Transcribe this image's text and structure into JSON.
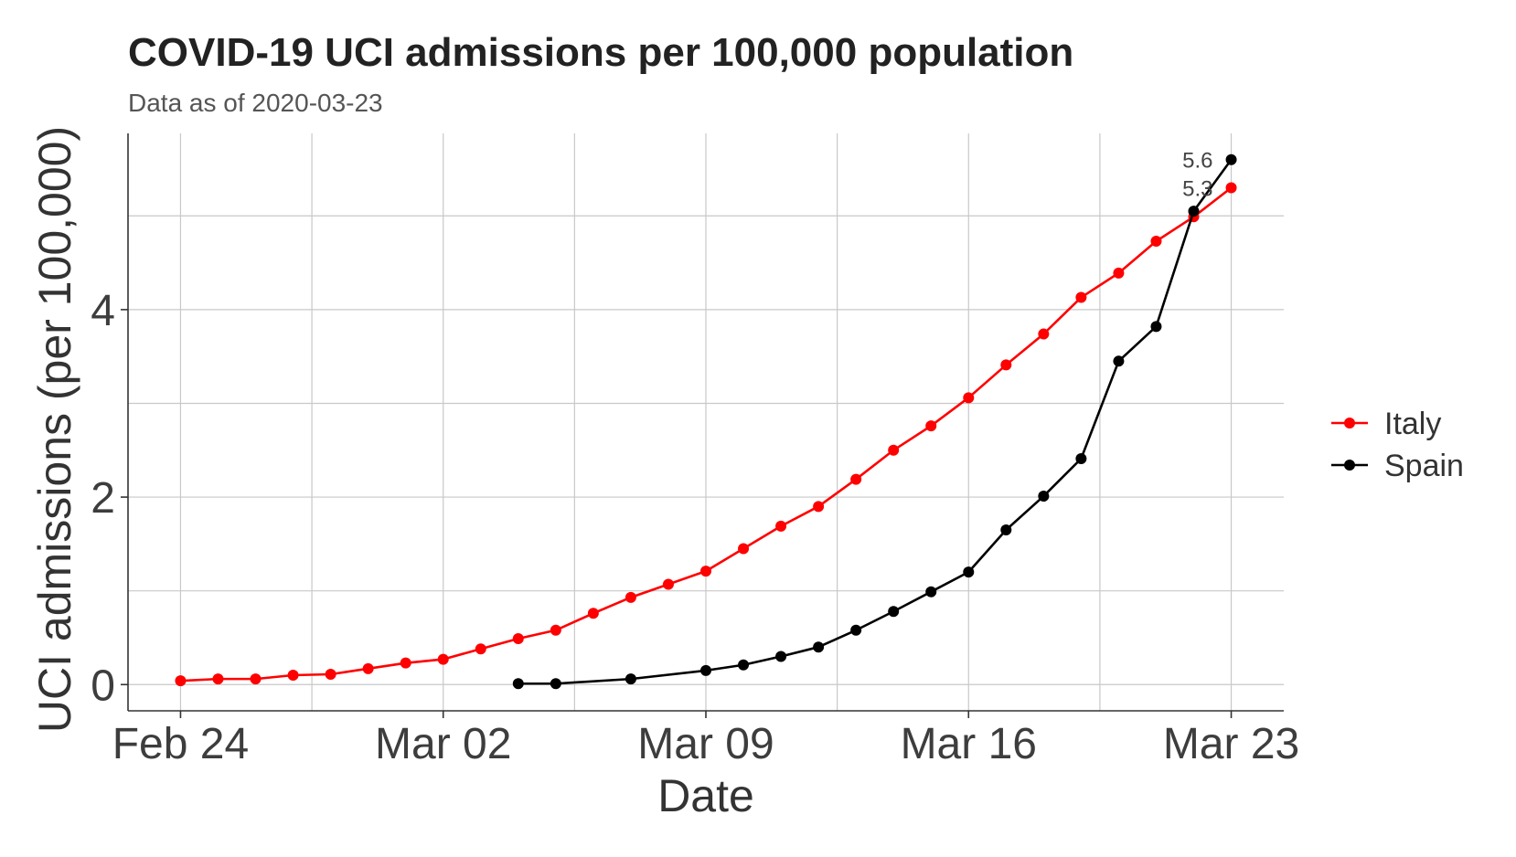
{
  "chart_data": {
    "type": "line",
    "title": "COVID-19 UCI admissions per 100,000 population",
    "subtitle": "Data as of 2020-03-23",
    "xlabel": "Date",
    "ylabel": "UCI  admissions (per 100,000)",
    "x_tick_labels": [
      "Feb 24",
      "Mar 02",
      "Mar 09",
      "Mar 16",
      "Mar 23"
    ],
    "x_tick_dates": [
      "2020-02-24",
      "2020-03-02",
      "2020-03-09",
      "2020-03-16",
      "2020-03-23"
    ],
    "xlim": [
      "2020-02-22.6",
      "2020-03-24.4"
    ],
    "y_ticks": [
      0,
      2,
      4
    ],
    "ylim": [
      -0.28,
      5.88
    ],
    "grid": true,
    "legend_position": "right",
    "series": [
      {
        "name": "Italy",
        "color": "#ff0000",
        "x": [
          "2020-02-24",
          "2020-02-25",
          "2020-02-26",
          "2020-02-27",
          "2020-02-28",
          "2020-02-29",
          "2020-03-01",
          "2020-03-02",
          "2020-03-03",
          "2020-03-04",
          "2020-03-05",
          "2020-03-06",
          "2020-03-07",
          "2020-03-08",
          "2020-03-09",
          "2020-03-10",
          "2020-03-11",
          "2020-03-12",
          "2020-03-13",
          "2020-03-14",
          "2020-03-15",
          "2020-03-16",
          "2020-03-17",
          "2020-03-18",
          "2020-03-19",
          "2020-03-20",
          "2020-03-21",
          "2020-03-22",
          "2020-03-23"
        ],
        "y": [
          0.04,
          0.06,
          0.06,
          0.1,
          0.11,
          0.17,
          0.23,
          0.27,
          0.38,
          0.49,
          0.58,
          0.76,
          0.93,
          1.07,
          1.21,
          1.45,
          1.69,
          1.9,
          2.19,
          2.5,
          2.76,
          3.06,
          3.41,
          3.74,
          4.13,
          4.39,
          4.73,
          4.99,
          5.3
        ],
        "end_label": "5.3"
      },
      {
        "name": "Spain",
        "color": "#000000",
        "x": [
          "2020-03-04",
          "2020-03-05",
          "2020-03-07",
          "2020-03-09",
          "2020-03-10",
          "2020-03-11",
          "2020-03-12",
          "2020-03-13",
          "2020-03-14",
          "2020-03-15",
          "2020-03-16",
          "2020-03-17",
          "2020-03-18",
          "2020-03-19",
          "2020-03-20",
          "2020-03-21",
          "2020-03-22",
          "2020-03-23"
        ],
        "y": [
          0.01,
          0.01,
          0.06,
          0.15,
          0.21,
          0.3,
          0.4,
          0.58,
          0.78,
          0.99,
          1.2,
          1.65,
          2.01,
          2.41,
          3.45,
          3.82,
          5.05,
          5.6
        ],
        "end_label": "5.6"
      }
    ]
  }
}
